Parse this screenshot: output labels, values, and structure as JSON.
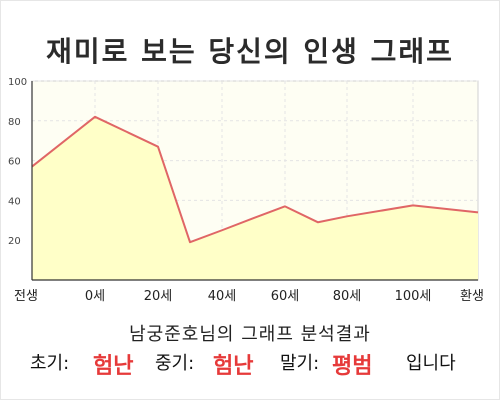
{
  "title": "재미로 보는 당신의 인생 그래프",
  "chart_data": {
    "type": "area",
    "x_categories": [
      "전생",
      "0세",
      "20세",
      "40세",
      "60세",
      "80세",
      "100세",
      "환생"
    ],
    "points": [
      {
        "x": "전생",
        "y": 57
      },
      {
        "x": "0세",
        "y": 82
      },
      {
        "x": "20세",
        "y": 67
      },
      {
        "x": "30세",
        "y": 19
      },
      {
        "x": "40세",
        "y": 25
      },
      {
        "x": "50세",
        "y": 31
      },
      {
        "x": "60세",
        "y": 37
      },
      {
        "x": "70세",
        "y": 29
      },
      {
        "x": "80세",
        "y": 32
      },
      {
        "x": "100세",
        "y": 37.5
      },
      {
        "x": "환생",
        "y": 34
      }
    ],
    "y_ticks": [
      20,
      40,
      60,
      80,
      100
    ],
    "ylim": [
      0,
      100
    ],
    "grid": true,
    "colors": {
      "line": "#e06666",
      "fill": "#ffffc8",
      "grid": "#e4e4e4",
      "axis": "#333333"
    }
  },
  "subtitle": "남궁준호님의 그래프 분석결과",
  "summary": {
    "early_label": "초기:",
    "early_value": "험난",
    "middle_label": "중기:",
    "middle_value": "험난",
    "late_label": "말기:",
    "late_value": "평범",
    "ending": "입니다"
  }
}
